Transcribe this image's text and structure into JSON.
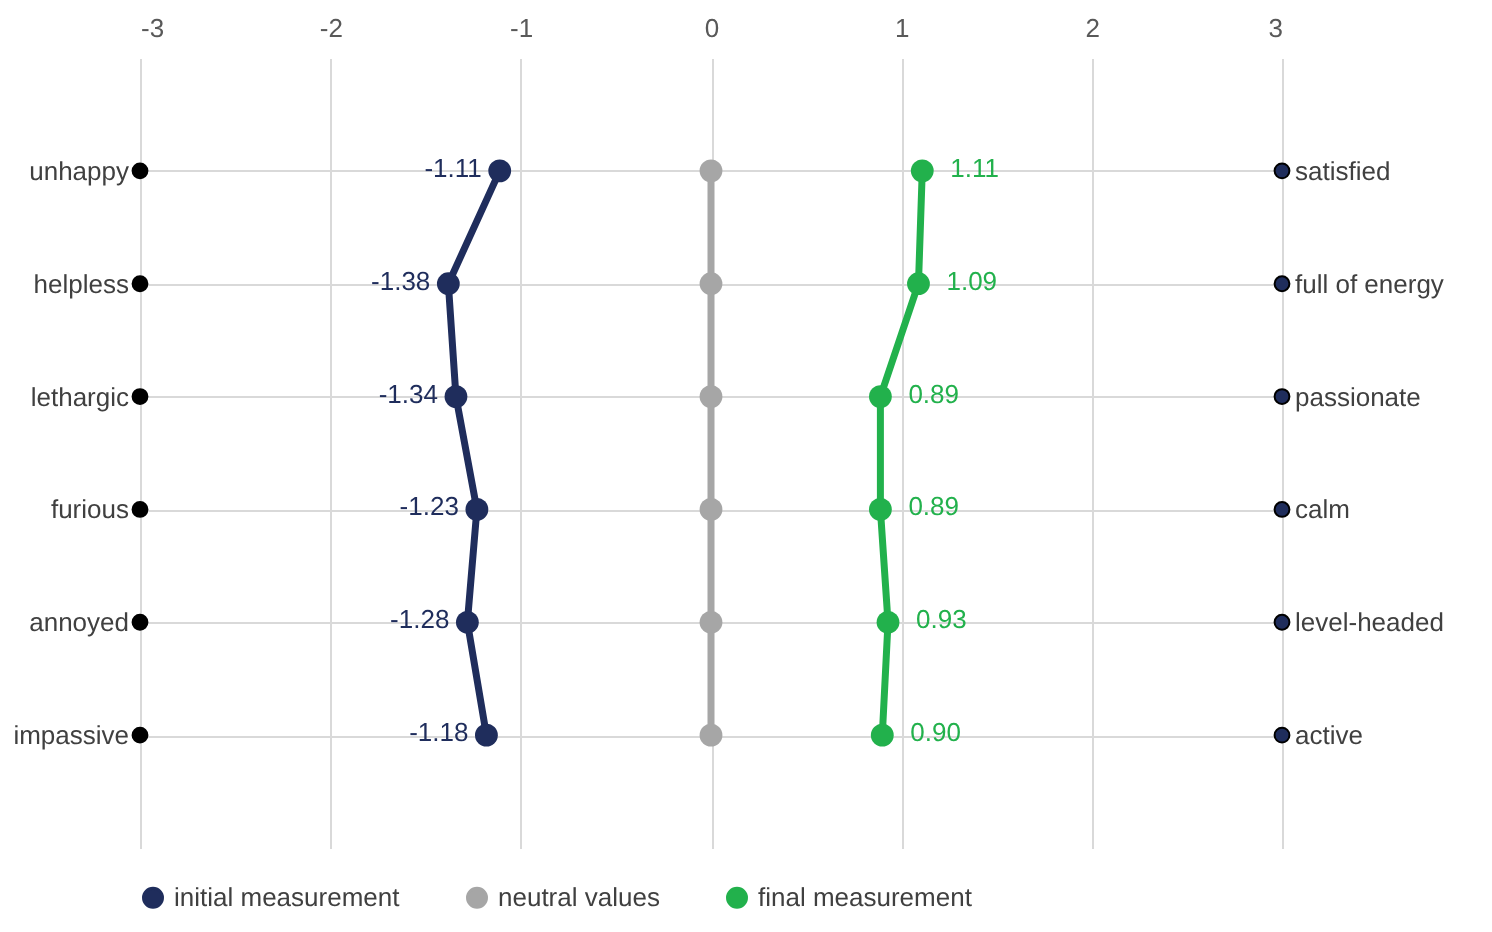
{
  "chart_data": {
    "type": "line",
    "orientation": "horizontal",
    "categories": [
      "unhappy",
      "helpless",
      "lethargic",
      "furious",
      "annoyed",
      "impassive"
    ],
    "y2_categories": [
      "satisfied",
      "full of energy",
      "passionate",
      "calm",
      "level-headed",
      "active"
    ],
    "xlim": [
      -3,
      3
    ],
    "xticks": [
      -3,
      -2,
      -1,
      0,
      1,
      2,
      3
    ],
    "grid": true,
    "legend": "bottom",
    "marker": "circle",
    "line_style": "solid",
    "series": [
      {
        "name": "initial measurement",
        "color": "#1f2d5c",
        "values": [
          -1.11,
          -1.38,
          -1.34,
          -1.23,
          -1.28,
          -1.18
        ],
        "value_labels": [
          "-1.11",
          "-1.38",
          "-1.34",
          "-1.23",
          "-1.28",
          "-1.18"
        ]
      },
      {
        "name": "neutral values",
        "color": "#a6a6a6",
        "values": [
          0,
          0,
          0,
          0,
          0,
          0
        ]
      },
      {
        "name": "final measurement",
        "color": "#22b14c",
        "values": [
          1.11,
          1.09,
          0.89,
          0.89,
          0.93,
          0.9
        ],
        "value_labels": [
          "1.11",
          "1.09",
          "0.89",
          "0.89",
          "0.93",
          "0.90"
        ]
      },
      {
        "type": "scatter",
        "color": "#000000",
        "values": [
          -3,
          -3,
          -3,
          -3,
          -3,
          -3
        ]
      },
      {
        "type": "scatter",
        "color": "#1f2d5c",
        "values": [
          3,
          3,
          3,
          3,
          3,
          3
        ]
      }
    ]
  }
}
